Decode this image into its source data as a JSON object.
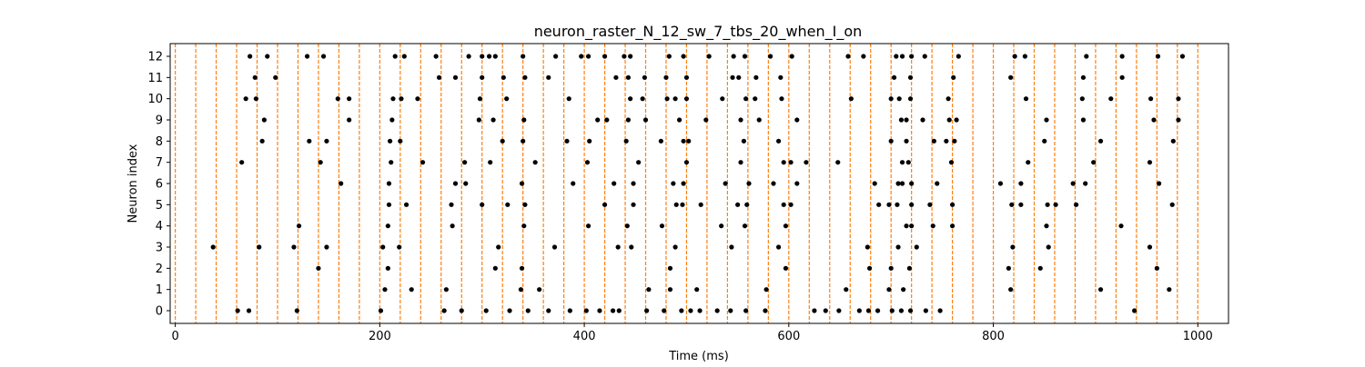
{
  "chart_data": {
    "type": "scatter",
    "title": "neuron_raster_N_12_sw_7_tbs_20_when_I_on",
    "xlabel": "Time (ms)",
    "ylabel": "Neuron index",
    "xlim": [
      -5,
      1030
    ],
    "ylim": [
      -0.6,
      12.6
    ],
    "xticks": [
      0,
      200,
      400,
      600,
      800,
      1000
    ],
    "yticks": [
      0,
      1,
      2,
      3,
      4,
      5,
      6,
      7,
      8,
      9,
      10,
      11,
      12
    ],
    "grid": false,
    "marker_color": "#000000",
    "vline_color": "#ff7f0e",
    "vlines": [
      0,
      20,
      40,
      60,
      80,
      100,
      120,
      140,
      160,
      180,
      200,
      220,
      240,
      260,
      280,
      300,
      320,
      340,
      360,
      380,
      400,
      420,
      440,
      460,
      480,
      500,
      520,
      540,
      560,
      580,
      600,
      620,
      640,
      660,
      680,
      700,
      720,
      740,
      760,
      780,
      800,
      820,
      840,
      860,
      880,
      900,
      920,
      940,
      960,
      980,
      1000
    ],
    "series": [
      {
        "y": 12,
        "x": [
          73,
          90,
          129,
          145,
          215,
          224,
          255,
          287,
          300,
          307,
          313,
          340,
          372,
          397,
          404,
          420,
          439,
          445,
          483,
          497,
          522,
          546,
          557,
          582,
          603,
          658,
          673,
          705,
          711,
          720,
          733,
          766,
          821,
          831,
          891,
          926,
          961,
          985
        ]
      },
      {
        "y": 11,
        "x": [
          78,
          98,
          258,
          274,
          300,
          321,
          342,
          365,
          431,
          443,
          459,
          480,
          500,
          545,
          551,
          568,
          592,
          703,
          719,
          761,
          817,
          888,
          926
        ]
      },
      {
        "y": 10,
        "x": [
          69,
          79,
          159,
          170,
          213,
          221,
          237,
          298,
          324,
          385,
          445,
          457,
          481,
          489,
          500,
          535,
          558,
          567,
          593,
          661,
          700,
          708,
          719,
          756,
          832,
          887,
          915,
          954,
          981
        ]
      },
      {
        "y": 9,
        "x": [
          87,
          170,
          212,
          297,
          311,
          341,
          413,
          422,
          443,
          460,
          493,
          519,
          553,
          571,
          608,
          710,
          715,
          731,
          757,
          764,
          852,
          888,
          957,
          981
        ]
      },
      {
        "y": 8,
        "x": [
          85,
          131,
          148,
          210,
          220,
          320,
          340,
          383,
          405,
          441,
          475,
          497,
          502,
          556,
          590,
          700,
          715,
          742,
          754,
          762,
          850,
          905,
          976
        ]
      },
      {
        "y": 7,
        "x": [
          65,
          142,
          211,
          242,
          283,
          308,
          352,
          403,
          453,
          500,
          553,
          595,
          602,
          617,
          648,
          711,
          717,
          759,
          834,
          898,
          953
        ]
      },
      {
        "y": 6,
        "x": [
          162,
          209,
          274,
          284,
          339,
          389,
          429,
          448,
          487,
          497,
          538,
          561,
          585,
          608,
          684,
          707,
          711,
          720,
          745,
          807,
          827,
          878,
          890,
          962
        ]
      },
      {
        "y": 5,
        "x": [
          209,
          226,
          270,
          300,
          325,
          342,
          420,
          448,
          490,
          496,
          514,
          550,
          559,
          595,
          602,
          688,
          698,
          706,
          720,
          738,
          760,
          818,
          827,
          853,
          861,
          881,
          975
        ]
      },
      {
        "y": 4,
        "x": [
          121,
          208,
          271,
          341,
          404,
          442,
          476,
          534,
          557,
          597,
          715,
          720,
          741,
          760,
          852,
          925
        ]
      },
      {
        "y": 3,
        "x": [
          37,
          82,
          116,
          148,
          203,
          219,
          316,
          371,
          433,
          446,
          489,
          544,
          590,
          677,
          707,
          725,
          819,
          854,
          953
        ]
      },
      {
        "y": 2,
        "x": [
          140,
          208,
          313,
          339,
          484,
          597,
          679,
          700,
          718,
          815,
          846,
          960
        ]
      },
      {
        "y": 1,
        "x": [
          205,
          231,
          265,
          338,
          356,
          463,
          484,
          510,
          578,
          656,
          698,
          712,
          817,
          905,
          972
        ]
      },
      {
        "y": 0,
        "x": [
          61,
          72,
          119,
          201,
          263,
          280,
          304,
          327,
          345,
          365,
          386,
          402,
          415,
          428,
          434,
          461,
          478,
          495,
          504,
          513,
          530,
          543,
          558,
          577,
          625,
          636,
          649,
          669,
          678,
          687,
          701,
          710,
          719,
          734,
          748,
          938
        ]
      }
    ]
  }
}
